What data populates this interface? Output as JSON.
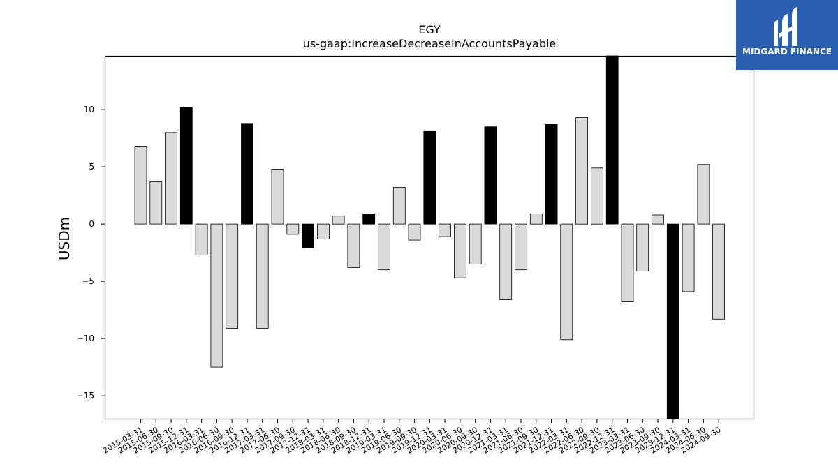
{
  "logo": {
    "text": "MIDGARD FINANCE",
    "background": "#2a5fb0",
    "icon": "midgard-logo-icon"
  },
  "chart_data": {
    "type": "bar",
    "title": "EGY",
    "subtitle": "us-gaap:IncreaseDecreaseInAccountsPayable",
    "xlabel": "",
    "ylabel": "USDm",
    "ylim": [
      -17,
      14.7
    ],
    "yticks": [
      -15,
      -10,
      -5,
      0,
      5,
      10
    ],
    "ytick_labels": [
      "−15",
      "−10",
      "−5",
      "0",
      "5",
      "10"
    ],
    "grid": false,
    "colors": {
      "quarter": "#d9d9d9",
      "year_end": "#000000",
      "edge": "#000000"
    },
    "categories": [
      "2015-03-31",
      "2015-06-30",
      "2015-09-30",
      "2015-12-31",
      "2016-03-31",
      "2016-06-30",
      "2016-09-30",
      "2016-12-31",
      "2017-03-31",
      "2017-06-30",
      "2017-09-30",
      "2017-12-31",
      "2018-03-31",
      "2018-06-30",
      "2018-09-30",
      "2018-12-31",
      "2019-03-31",
      "2019-06-30",
      "2019-09-30",
      "2019-12-31",
      "2020-03-31",
      "2020-06-30",
      "2020-09-30",
      "2020-12-31",
      "2021-03-31",
      "2021-06-30",
      "2021-09-30",
      "2021-12-31",
      "2022-03-31",
      "2022-06-30",
      "2022-09-30",
      "2022-12-31",
      "2023-03-31",
      "2023-06-30",
      "2023-09-30",
      "2023-12-31",
      "2024-03-31",
      "2024-06-30",
      "2024-09-30"
    ],
    "values": [
      6.8,
      3.7,
      8.0,
      10.2,
      -2.7,
      -12.5,
      -9.1,
      8.8,
      -9.1,
      4.8,
      -0.9,
      -2.1,
      -1.3,
      0.7,
      -3.8,
      0.9,
      -4.0,
      3.2,
      -1.4,
      8.1,
      -1.1,
      -4.7,
      -3.5,
      8.5,
      -6.6,
      -4.0,
      0.9,
      8.7,
      -10.1,
      9.3,
      4.9,
      15.0,
      -6.8,
      -4.1,
      0.8,
      -18.0,
      -5.9,
      5.2,
      -8.3
    ],
    "year_end": [
      false,
      false,
      false,
      true,
      false,
      false,
      false,
      true,
      false,
      false,
      false,
      true,
      false,
      false,
      false,
      true,
      false,
      false,
      false,
      true,
      false,
      false,
      false,
      true,
      false,
      false,
      false,
      true,
      false,
      false,
      false,
      true,
      false,
      false,
      false,
      true,
      false,
      false,
      false
    ]
  }
}
